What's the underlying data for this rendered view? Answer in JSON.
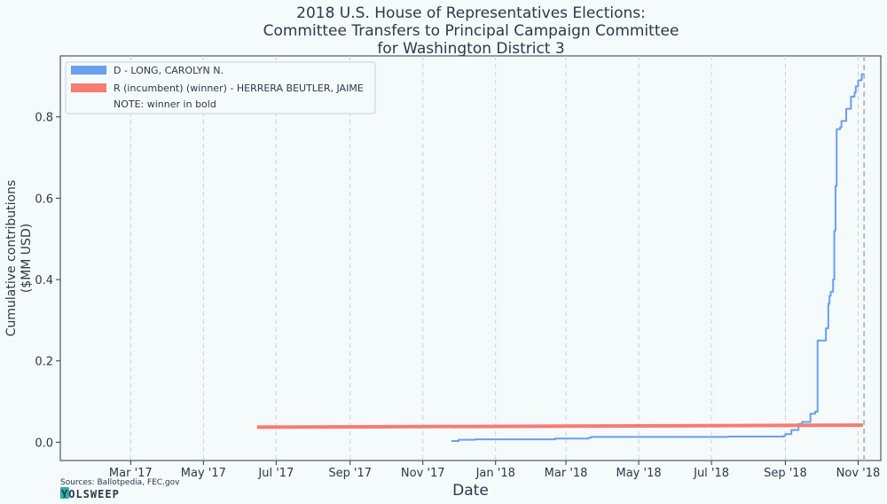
{
  "chart_data": {
    "type": "line",
    "title_lines": [
      "2018 U.S. House of Representatives Elections:",
      "Committee Transfers to Principal Campaign Committee",
      "for Washington District 3"
    ],
    "xlabel": "Date",
    "ylabel_lines": [
      "Cumulative contributions",
      "($MM USD)"
    ],
    "x_range": [
      "2017-01-01",
      "2018-11-20"
    ],
    "ylim": [
      -0.045,
      0.95
    ],
    "y_ticks": [
      0.0,
      0.2,
      0.4,
      0.6,
      0.8
    ],
    "y_tick_labels": [
      "0.0",
      "0.2",
      "0.4",
      "0.6",
      "0.8"
    ],
    "x_ticks": [
      {
        "date": "2017-03-01",
        "label": "Mar '17"
      },
      {
        "date": "2017-05-01",
        "label": "May '17"
      },
      {
        "date": "2017-07-01",
        "label": "Jul '17"
      },
      {
        "date": "2017-09-01",
        "label": "Sep '17"
      },
      {
        "date": "2017-11-01",
        "label": "Nov '17"
      },
      {
        "date": "2018-01-01",
        "label": "Jan '18"
      },
      {
        "date": "2018-03-01",
        "label": "Mar '18"
      },
      {
        "date": "2018-05-01",
        "label": "May '18"
      },
      {
        "date": "2018-07-01",
        "label": "Jul '18"
      },
      {
        "date": "2018-09-01",
        "label": "Sep '18"
      },
      {
        "date": "2018-11-01",
        "label": "Nov '18"
      }
    ],
    "grid": "vertical-dashed",
    "election_day_marker": "2018-11-06",
    "legend_placement": "top-left",
    "legend_note": "NOTE: winner in bold",
    "series": [
      {
        "name": "D - LONG, CAROLYN N.",
        "color": "#6a9ff0",
        "bold": false,
        "step": true,
        "points": [
          [
            "2017-11-25",
            0.003
          ],
          [
            "2017-12-01",
            0.006
          ],
          [
            "2017-12-15",
            0.007
          ],
          [
            "2018-02-20",
            0.009
          ],
          [
            "2018-03-20",
            0.011
          ],
          [
            "2018-03-22",
            0.013
          ],
          [
            "2018-05-15",
            0.013
          ],
          [
            "2018-07-15",
            0.014
          ],
          [
            "2018-08-31",
            0.016
          ],
          [
            "2018-09-01",
            0.02
          ],
          [
            "2018-09-06",
            0.03
          ],
          [
            "2018-09-12",
            0.045
          ],
          [
            "2018-09-15",
            0.05
          ],
          [
            "2018-09-22",
            0.07
          ],
          [
            "2018-09-26",
            0.075
          ],
          [
            "2018-09-28",
            0.25
          ],
          [
            "2018-10-05",
            0.28
          ],
          [
            "2018-10-07",
            0.34
          ],
          [
            "2018-10-08",
            0.36
          ],
          [
            "2018-10-09",
            0.37
          ],
          [
            "2018-10-11",
            0.4
          ],
          [
            "2018-10-12",
            0.52
          ],
          [
            "2018-10-13",
            0.63
          ],
          [
            "2018-10-14",
            0.77
          ],
          [
            "2018-10-17",
            0.775
          ],
          [
            "2018-10-18",
            0.79
          ],
          [
            "2018-10-22",
            0.82
          ],
          [
            "2018-10-26",
            0.85
          ],
          [
            "2018-10-29",
            0.86
          ],
          [
            "2018-10-30",
            0.875
          ],
          [
            "2018-11-01",
            0.89
          ],
          [
            "2018-11-04",
            0.905
          ],
          [
            "2018-11-06",
            0.905
          ]
        ]
      },
      {
        "name": "R (incumbent) (winner) - HERRERA BEUTLER, JAIME",
        "color": "#f77b72",
        "bold": true,
        "step": false,
        "points": [
          [
            "2017-06-15",
            0.037
          ],
          [
            "2018-11-05",
            0.042
          ]
        ]
      }
    ],
    "sources": "Sources: Ballotpedia, FEC.gov",
    "brand": "YOLSWEEP"
  }
}
